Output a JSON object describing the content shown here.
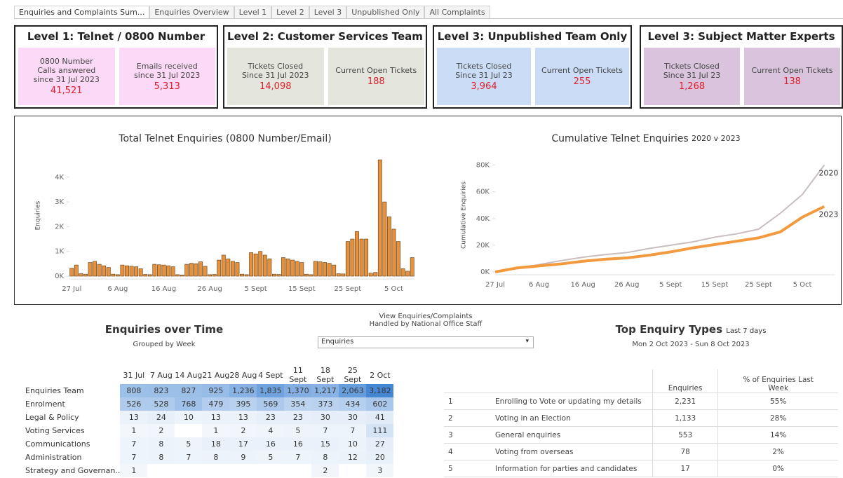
{
  "tabs": [
    "Enquiries and Complaints Sum...",
    "Enquiries Overview",
    "Level 1",
    "Level 2",
    "Level 3",
    "Unpublished Only",
    "All Complaints"
  ],
  "kpi_groups": [
    {
      "title": "Level 1: Telnet / 0800 Number",
      "color": "#fcd9f6",
      "cards": [
        {
          "label": "0800 Number\nCalls answered\nsince 31 Jul 2023",
          "value": "41,521"
        },
        {
          "label": "Emails received\nsince 31 Jul 2023",
          "value": "5,313"
        }
      ]
    },
    {
      "title": "Level 2: Customer Services Team",
      "color": "#e4e5dc",
      "cards": [
        {
          "label": "Tickets Closed\nSince 31 Jul 2023",
          "value": "14,098"
        },
        {
          "label": "Current Open Tickets",
          "value": "188"
        }
      ]
    },
    {
      "title": "Level 3: Unpublished Team Only",
      "color": "#cadcf6",
      "cards": [
        {
          "label": "Tickets Closed\nSince 31 Jul 23",
          "value": "3,964"
        },
        {
          "label": "Current Open Tickets",
          "value": "255"
        }
      ]
    },
    {
      "title": "Level 3: Subject Matter Experts",
      "color": "#d9c3dd",
      "cards": [
        {
          "label": "Tickets Closed\nSince 31 Jul 23",
          "value": "1,268"
        },
        {
          "label": "Current Open Tickets",
          "value": "138"
        }
      ]
    }
  ],
  "chart_data": [
    {
      "type": "bar",
      "title": "Total Telnet Enquiries (0800 Number/Email)",
      "y_label": "Enquiries",
      "color": "#e8913c",
      "categories": [
        "27 Jul",
        null,
        null,
        null,
        null,
        null,
        null,
        null,
        null,
        null,
        "6 Aug",
        null,
        null,
        null,
        null,
        null,
        null,
        null,
        null,
        null,
        "16 Aug",
        null,
        null,
        null,
        null,
        null,
        null,
        null,
        null,
        null,
        "26 Aug",
        null,
        null,
        null,
        null,
        null,
        null,
        null,
        null,
        null,
        "5 Sept",
        null,
        null,
        null,
        null,
        null,
        null,
        null,
        null,
        null,
        "15 Sept",
        null,
        null,
        null,
        null,
        null,
        null,
        null,
        null,
        null,
        "25 Sept",
        null,
        null,
        null,
        null,
        null,
        null,
        null,
        null,
        null,
        "5 Oct",
        null,
        null,
        null,
        null
      ],
      "values": [
        320,
        450,
        100,
        80,
        550,
        600,
        480,
        420,
        350,
        80,
        60,
        450,
        420,
        400,
        380,
        300,
        70,
        60,
        480,
        460,
        450,
        420,
        380,
        60,
        50,
        480,
        520,
        500,
        580,
        400,
        60,
        70,
        650,
        850,
        700,
        600,
        550,
        80,
        60,
        950,
        900,
        1000,
        850,
        700,
        80,
        70,
        750,
        700,
        650,
        600,
        550,
        80,
        60,
        600,
        580,
        550,
        520,
        450,
        100,
        90,
        1400,
        1500,
        1800,
        1500,
        1500,
        120,
        150,
        4700,
        3000,
        2400,
        1900,
        1400,
        300,
        200,
        750
      ],
      "ylim": [
        0,
        4900
      ],
      "yticks": [
        {
          "value": 0,
          "label": "0K"
        },
        {
          "value": 1000,
          "label": "1K"
        },
        {
          "value": 2000,
          "label": "2K"
        },
        {
          "value": 3000,
          "label": "3K"
        },
        {
          "value": 4000,
          "label": "4K"
        }
      ]
    },
    {
      "type": "line",
      "title": "Cumulative Telnet Enquiries",
      "subtitle": "2020 v 2023",
      "y_label": "Cumulative Enquiries",
      "categories": [
        "27 Jul",
        null,
        "6 Aug",
        null,
        "16 Aug",
        null,
        "26 Aug",
        null,
        "5 Sept",
        null,
        "15 Sept",
        null,
        "25 Sept",
        null,
        "5 Oct",
        null
      ],
      "series": [
        {
          "name": "2020",
          "color": "#c9bdbd",
          "values": [
            500,
            3000,
            5500,
            8500,
            11000,
            13000,
            14500,
            17500,
            20000,
            22500,
            26000,
            28500,
            32000,
            44000,
            58000,
            80000
          ]
        },
        {
          "name": "2023",
          "color": "#f39a3e",
          "values": [
            0,
            3000,
            4500,
            6000,
            8000,
            9500,
            10500,
            12500,
            15000,
            18000,
            20500,
            23000,
            25500,
            30000,
            41000,
            49000
          ]
        }
      ],
      "ylim": [
        0,
        85000
      ],
      "yticks": [
        {
          "value": 0,
          "label": "0K"
        },
        {
          "value": 20000,
          "label": "20K"
        },
        {
          "value": 40000,
          "label": "40K"
        },
        {
          "value": 60000,
          "label": "60K"
        },
        {
          "value": 80000,
          "label": "80K"
        }
      ]
    }
  ],
  "heatmap": {
    "title": "Enquiries over Time",
    "subtitle": "Grouped by Week",
    "columns": [
      "31 Jul",
      "7 Aug",
      "14 Aug",
      "21 Aug",
      "28 Aug",
      "4 Sept",
      "11 Sept",
      "18 Sept",
      "25 Sept",
      "2 Oct"
    ],
    "rows": [
      {
        "label": "Enquiries Team",
        "cells": [
          "808",
          "823",
          "827",
          "925",
          "1,236",
          "1,835",
          "1,370",
          "1,217",
          "2,063",
          "3,182"
        ]
      },
      {
        "label": "Enrolment",
        "cells": [
          "526",
          "528",
          "768",
          "479",
          "395",
          "569",
          "354",
          "373",
          "434",
          "602"
        ]
      },
      {
        "label": "Legal & Policy",
        "cells": [
          "13",
          "24",
          "10",
          "13",
          "13",
          "23",
          "23",
          "30",
          "30",
          "41"
        ]
      },
      {
        "label": "Voting Services",
        "cells": [
          "1",
          "2",
          null,
          "1",
          "2",
          "4",
          "5",
          "7",
          "7",
          "111"
        ]
      },
      {
        "label": "Communications",
        "cells": [
          "7",
          "8",
          "5",
          "18",
          "17",
          "16",
          "16",
          "15",
          "10",
          "27"
        ]
      },
      {
        "label": "Administration",
        "cells": [
          "7",
          "8",
          "7",
          "8",
          "9",
          "5",
          "7",
          "8",
          "12",
          "20"
        ]
      },
      {
        "label": "Strategy and Governan..",
        "cells": [
          "1",
          null,
          null,
          null,
          null,
          null,
          null,
          "2",
          null,
          "3"
        ]
      }
    ]
  },
  "filter": {
    "label": "View Enquiries/Complaints\nHandled by National Office Staff",
    "selected": "Enquiries"
  },
  "top_types": {
    "title": "Top Enquiry Types",
    "title_note": "Last 7 days",
    "subtitle": "Mon 2 Oct 2023 - Sun 8 Oct 2023",
    "headers": [
      "Enquiries",
      "% of Enquiries Last\nWeek"
    ],
    "rows": [
      [
        "1",
        "Enrolling to Vote or updating my details",
        "2,231",
        "55%"
      ],
      [
        "2",
        "Voting in an Election",
        "1,133",
        "28%"
      ],
      [
        "3",
        "General enquiries",
        "553",
        "14%"
      ],
      [
        "4",
        "Voting from overseas",
        "78",
        "2%"
      ],
      [
        "5",
        "Information for parties and candidates",
        "17",
        "0%"
      ]
    ]
  }
}
